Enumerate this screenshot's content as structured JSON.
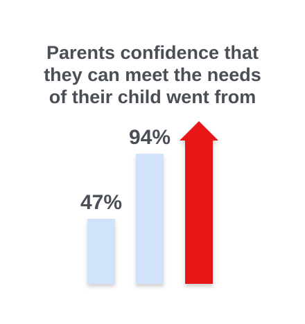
{
  "title_lines": [
    "Parents confidence that",
    "they can meet the needs",
    "of their child went from"
  ],
  "colors": {
    "bar": "#d1e2fb",
    "arrow": "#e81416",
    "text": "#4a4f57"
  },
  "chart_data": {
    "type": "bar",
    "title": "Parents confidence that they can meet the needs of their child went from",
    "categories": [
      "",
      ""
    ],
    "values": [
      47,
      94
    ],
    "value_labels": [
      "47%",
      "94%"
    ],
    "ylim": [
      0,
      100
    ],
    "grid": false,
    "legend": "none",
    "trend_arrow": "up"
  }
}
